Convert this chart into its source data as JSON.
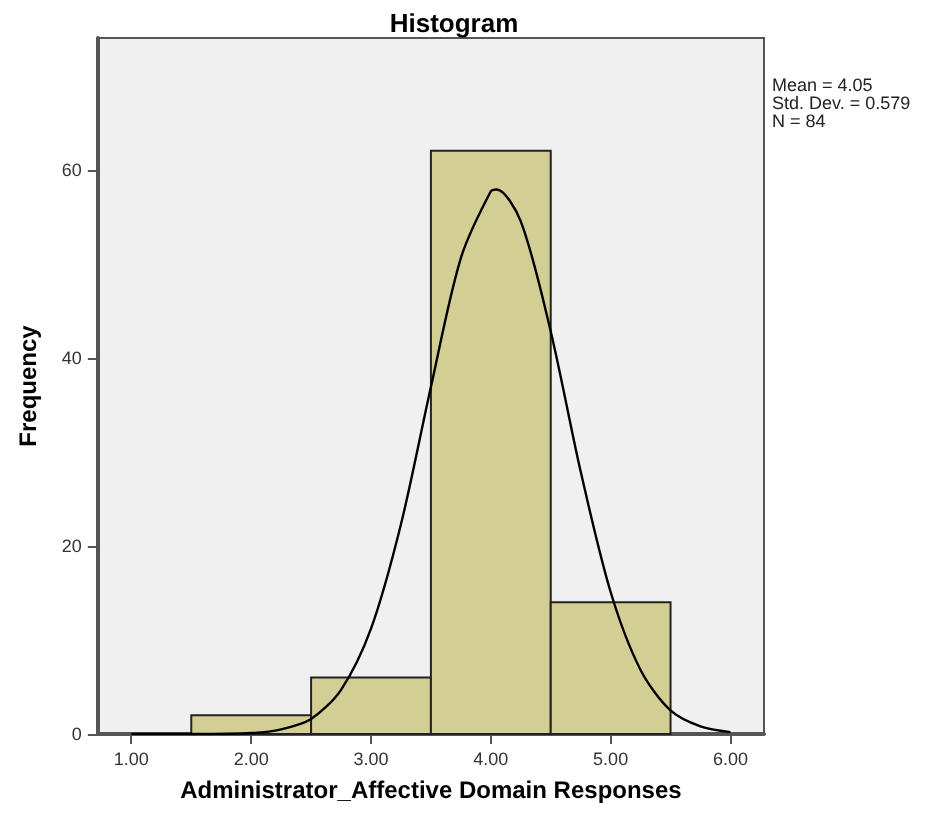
{
  "chart_data": {
    "type": "histogram",
    "title": "Histogram",
    "xlabel": "Administrator_Affective Domain Responses",
    "ylabel": "Frequency",
    "series": [
      {
        "color": "#d3cf94",
        "bins": [
          1.5,
          2.5,
          3.5,
          4.5,
          5.5
        ],
        "values": [
          2,
          6,
          62,
          14
        ]
      },
      {
        "type": "line",
        "color": "#000000",
        "marker": "none",
        "x": [
          1,
          1.5,
          2,
          2.25,
          2.5,
          2.75,
          3,
          3.25,
          3.5,
          3.75,
          4,
          4.05,
          4.25,
          4.5,
          4.75,
          5,
          5.25,
          5.5,
          5.75,
          6
        ],
        "values": [
          0,
          0,
          0.1,
          0.5,
          1.6,
          4.7,
          11.2,
          22.3,
          36.9,
          50.6,
          57.7,
          57.9,
          54.5,
          42.8,
          27.9,
          15.1,
          6.8,
          2.5,
          0.8,
          0.2
        ]
      }
    ],
    "xlim": [
      0.72,
      6.28
    ],
    "ylim": [
      0,
      74
    ],
    "xticks": [
      {
        "value": 1,
        "label": "1.00"
      },
      {
        "value": 2,
        "label": "2.00"
      },
      {
        "value": 3,
        "label": "3.00"
      },
      {
        "value": 4,
        "label": "4.00"
      },
      {
        "value": 5,
        "label": "5.00"
      },
      {
        "value": 6,
        "label": "6.00"
      }
    ],
    "yticks": [
      0,
      20,
      40,
      60
    ],
    "grid": false,
    "annotations": [
      "Mean = 4.05",
      "Std. Dev. = 0.579",
      "N = 84"
    ]
  }
}
